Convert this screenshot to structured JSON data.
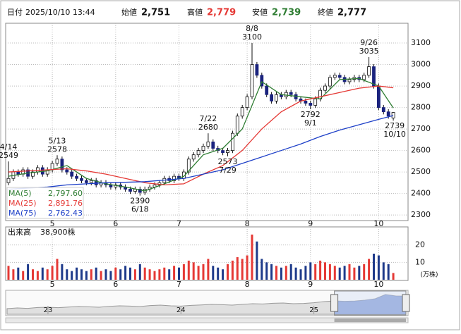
{
  "header": {
    "date_label": "日付",
    "date": "2025/10/10 13:44",
    "open_label": "始値",
    "open": "2,751",
    "high_label": "高値",
    "high": "2,779",
    "low_label": "安値",
    "low": "2,739",
    "close_label": "終値",
    "close": "2,777"
  },
  "chart_data": [
    {
      "type": "candlestick",
      "up_color": "#ffffff",
      "down_color": "#1a237e",
      "edge_color": "#111111",
      "open": [
        2450,
        2470,
        2500,
        2490,
        2510,
        2480,
        2500,
        2520,
        2490,
        2510,
        2540,
        2560,
        2510,
        2500,
        2480,
        2470,
        2460,
        2450,
        2460,
        2440,
        2450,
        2440,
        2430,
        2440,
        2430,
        2420,
        2410,
        2420,
        2405,
        2420,
        2430,
        2440,
        2450,
        2470,
        2460,
        2480,
        2470,
        2500,
        2560,
        2580,
        2600,
        2620,
        2640,
        2610,
        2600,
        2590,
        2600,
        2680,
        2760,
        2800,
        2850,
        3000,
        2950,
        2900,
        2860,
        2830,
        2860,
        2850,
        2870,
        2860,
        2840,
        2830,
        2820,
        2810,
        2840,
        2880,
        2900,
        2940,
        2950,
        2940,
        2920,
        2930,
        2940,
        2930,
        2950,
        2990,
        2900,
        2800,
        2780,
        2751
      ],
      "high": [
        2549,
        2512,
        2512,
        2522,
        2522,
        2512,
        2532,
        2532,
        2522,
        2552,
        2578,
        2572,
        2522,
        2512,
        2492,
        2482,
        2472,
        2472,
        2472,
        2462,
        2462,
        2452,
        2452,
        2452,
        2442,
        2432,
        2432,
        2432,
        2432,
        2442,
        2452,
        2462,
        2482,
        2482,
        2492,
        2492,
        2512,
        2572,
        2592,
        2612,
        2632,
        2680,
        2652,
        2622,
        2612,
        2612,
        2692,
        2772,
        2812,
        2862,
        3100,
        3012,
        2962,
        2912,
        2872,
        2872,
        2872,
        2882,
        2882,
        2872,
        2852,
        2842,
        2832,
        2852,
        2892,
        2912,
        2952,
        2962,
        2962,
        2952,
        2942,
        2952,
        2952,
        2962,
        3035,
        3002,
        2912,
        2812,
        2792,
        2779
      ],
      "low": [
        2438,
        2458,
        2478,
        2478,
        2468,
        2468,
        2488,
        2478,
        2478,
        2498,
        2528,
        2498,
        2488,
        2468,
        2458,
        2448,
        2438,
        2438,
        2428,
        2428,
        2428,
        2418,
        2418,
        2418,
        2408,
        2398,
        2398,
        2390,
        2393,
        2408,
        2418,
        2428,
        2438,
        2448,
        2448,
        2458,
        2458,
        2488,
        2548,
        2568,
        2588,
        2608,
        2598,
        2588,
        2578,
        2573,
        2588,
        2668,
        2748,
        2788,
        2838,
        2938,
        2888,
        2848,
        2818,
        2818,
        2838,
        2838,
        2848,
        2828,
        2818,
        2808,
        2792,
        2798,
        2828,
        2868,
        2888,
        2928,
        2928,
        2908,
        2908,
        2918,
        2918,
        2918,
        2938,
        2888,
        2788,
        2768,
        2748,
        2739
      ],
      "close": [
        2470,
        2500,
        2490,
        2510,
        2480,
        2500,
        2520,
        2490,
        2510,
        2540,
        2560,
        2510,
        2500,
        2480,
        2470,
        2460,
        2450,
        2460,
        2440,
        2450,
        2440,
        2430,
        2440,
        2430,
        2420,
        2410,
        2420,
        2405,
        2420,
        2430,
        2440,
        2450,
        2470,
        2460,
        2480,
        2470,
        2500,
        2560,
        2580,
        2600,
        2620,
        2640,
        2610,
        2600,
        2590,
        2600,
        2680,
        2760,
        2800,
        2850,
        3000,
        2950,
        2900,
        2860,
        2830,
        2860,
        2850,
        2870,
        2860,
        2840,
        2830,
        2820,
        2810,
        2840,
        2880,
        2900,
        2940,
        2950,
        2940,
        2920,
        2930,
        2940,
        2930,
        2950,
        2990,
        2900,
        2800,
        2780,
        2760,
        2777
      ],
      "xlim": [
        -0.58,
        82.03
      ],
      "ylim": [
        2274,
        3192
      ],
      "yticks": [
        2300,
        2400,
        2500,
        2600,
        2700,
        2800,
        2900,
        3000,
        3100
      ],
      "xticks": [
        {
          "value": 9,
          "label": "5"
        },
        {
          "value": 22,
          "label": "6"
        },
        {
          "value": 35,
          "label": "7"
        },
        {
          "value": 49,
          "label": "8"
        },
        {
          "value": 62,
          "label": "9"
        },
        {
          "value": 76,
          "label": "10"
        }
      ],
      "grid": true,
      "annotations": [
        {
          "index": 0,
          "kind": "high",
          "date": "4/14",
          "value": 2549
        },
        {
          "index": 10,
          "kind": "high",
          "date": "5/13",
          "value": 2578
        },
        {
          "index": 27,
          "kind": "low",
          "date": "6/18",
          "value": 2390
        },
        {
          "index": 41,
          "kind": "high",
          "date": "7/22",
          "value": 2680
        },
        {
          "index": 45,
          "kind": "low",
          "date": "7/29",
          "value": 2573
        },
        {
          "index": 50,
          "kind": "high",
          "date": "8/8",
          "value": 3100
        },
        {
          "index": 62,
          "kind": "low",
          "date": "9/1",
          "value": 2792
        },
        {
          "index": 74,
          "kind": "high",
          "date": "9/26",
          "value": 3035
        },
        {
          "index": 79,
          "kind": "low",
          "date": "10/10",
          "value": 2739
        }
      ],
      "series": [
        {
          "name": "MA(5)",
          "color": "#2e7d32",
          "latest": "2,797.60",
          "x": [
            0,
            4,
            8,
            12,
            16,
            20,
            24,
            28,
            32,
            36,
            40,
            44,
            48,
            52,
            56,
            60,
            64,
            68,
            72,
            76,
            79
          ],
          "values": [
            2480,
            2495,
            2505,
            2530,
            2470,
            2445,
            2430,
            2412,
            2445,
            2480,
            2580,
            2610,
            2700,
            2920,
            2860,
            2850,
            2840,
            2930,
            2935,
            2900,
            2797.6
          ]
        },
        {
          "name": "MA(25)",
          "color": "#e53935",
          "latest": "2,891.76",
          "x": [
            0,
            4,
            8,
            12,
            16,
            20,
            24,
            28,
            32,
            36,
            40,
            44,
            48,
            52,
            56,
            60,
            64,
            68,
            72,
            76,
            79
          ],
          "values": [
            2500,
            2505,
            2510,
            2515,
            2505,
            2490,
            2470,
            2450,
            2440,
            2445,
            2490,
            2530,
            2600,
            2700,
            2780,
            2830,
            2850,
            2870,
            2890,
            2900,
            2891.76
          ]
        },
        {
          "name": "MA(75)",
          "color": "#1e40c8",
          "latest": "2,762.43",
          "x": [
            0,
            4,
            8,
            12,
            16,
            20,
            24,
            28,
            32,
            36,
            40,
            44,
            48,
            52,
            56,
            60,
            64,
            68,
            72,
            76,
            79
          ],
          "values": [
            2420,
            2425,
            2430,
            2440,
            2445,
            2450,
            2452,
            2455,
            2462,
            2470,
            2490,
            2510,
            2540,
            2570,
            2600,
            2630,
            2665,
            2695,
            2720,
            2745,
            2762.43
          ]
        }
      ]
    },
    {
      "type": "bar",
      "title": "出来高",
      "latest": "38,900株",
      "unit": "(万株)",
      "up_color": "#e53935",
      "down_color": "#1e3a8a",
      "values": [
        8,
        6,
        7,
        5,
        9,
        6,
        5,
        7,
        6,
        8,
        12,
        9,
        6,
        5,
        7,
        6,
        5,
        6,
        7,
        5,
        6,
        5,
        7,
        6,
        8,
        7,
        6,
        9,
        7,
        6,
        5,
        6,
        7,
        6,
        8,
        7,
        9,
        11,
        10,
        8,
        9,
        12,
        8,
        7,
        6,
        9,
        11,
        13,
        12,
        14,
        26,
        22,
        12,
        10,
        9,
        8,
        7,
        8,
        9,
        7,
        6,
        8,
        10,
        9,
        11,
        10,
        9,
        8,
        7,
        8,
        9,
        7,
        8,
        9,
        12,
        15,
        14,
        10,
        9,
        3.89
      ],
      "ylim": [
        0,
        30
      ],
      "yticks": [
        10,
        20
      ],
      "xticks": [
        {
          "value": 9,
          "label": "5"
        },
        {
          "value": 22,
          "label": "6"
        },
        {
          "value": 35,
          "label": "7"
        },
        {
          "value": 49,
          "label": "8"
        },
        {
          "value": 62,
          "label": "9"
        },
        {
          "value": 76,
          "label": "10"
        }
      ]
    },
    {
      "type": "area",
      "color": "#9a9a9a",
      "window_color": "#6f8fd8",
      "window": [
        32,
        39
      ],
      "values": [
        1900,
        1950,
        1920,
        1980,
        2000,
        1970,
        2010,
        2050,
        2030,
        2000,
        2060,
        2100,
        2080,
        2050,
        2120,
        2150,
        2100,
        2080,
        2130,
        2160,
        2200,
        2180,
        2150,
        2200,
        2250,
        2230,
        2280,
        2300,
        2250,
        2270,
        2320,
        2400,
        2450,
        2420,
        2440,
        2500,
        2600,
        2900,
        2800,
        2780
      ],
      "ylim": [
        1500,
        3100
      ],
      "xticks": [
        {
          "value": 4,
          "label": "23"
        },
        {
          "value": 17,
          "label": "24"
        },
        {
          "value": 30,
          "label": "25"
        }
      ]
    }
  ]
}
